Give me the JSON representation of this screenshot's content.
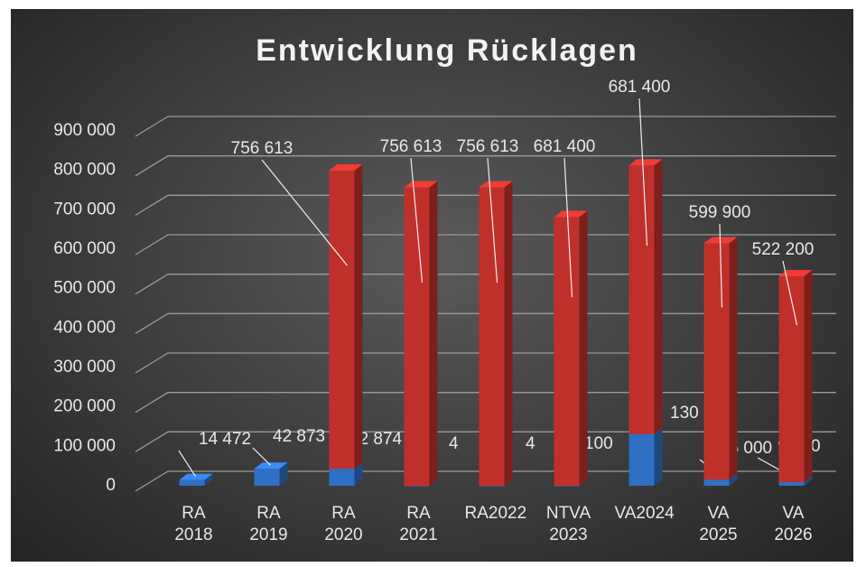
{
  "chart_data": {
    "type": "bar3d_stacked",
    "title": "Entwicklung Rücklagen",
    "categories": [
      "RA 2018",
      "RA 2019",
      "RA 2020",
      "RA 2021",
      "RA2022",
      "NTVA 2023",
      "VA2024",
      "VA 2025",
      "VA 2026"
    ],
    "series": [
      {
        "color": "#2f6fc4",
        "values": [
          14472,
          42873,
          42874,
          4,
          4,
          100,
          130900,
          15000,
          9200
        ],
        "value_labels": [
          "14 472",
          "42 873",
          "42 874",
          "4",
          "4",
          "100",
          "130 900",
          "15 000",
          "9 200"
        ]
      },
      {
        "color": "#c0302a",
        "values": [
          null,
          null,
          756613,
          756613,
          756613,
          681400,
          681400,
          599900,
          522200
        ],
        "value_labels": [
          null,
          null,
          "756 613",
          "756 613",
          "756 613",
          "681 400",
          "681 400",
          "599 900",
          "522 200"
        ]
      }
    ],
    "ylim": [
      0,
      900000
    ],
    "yticks": [
      0,
      {
        "value": 100000,
        "label": "100 000"
      },
      {
        "value": 200000,
        "label": "200 000"
      },
      {
        "value": 300000,
        "label": "300 000"
      },
      {
        "value": 400000,
        "label": "400 000"
      },
      {
        "value": 500000,
        "label": "500 000"
      },
      {
        "value": 600000,
        "label": "600 000"
      },
      {
        "value": 700000,
        "label": "700 000"
      },
      {
        "value": 800000,
        "label": "800 000"
      },
      {
        "value": 900000,
        "label": "900 000"
      }
    ],
    "grid": true
  }
}
